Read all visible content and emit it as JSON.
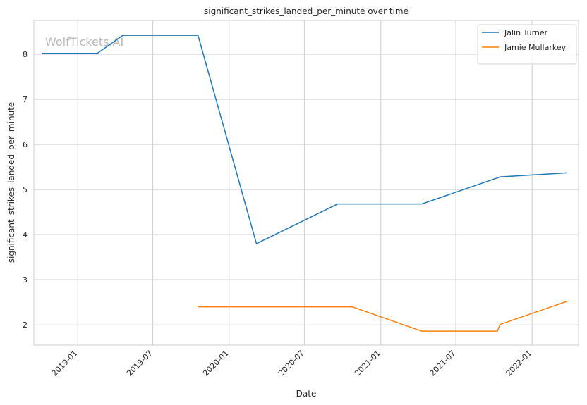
{
  "chart_data": {
    "type": "line",
    "title": "significant_strikes_landed_per_minute over time",
    "xlabel": "Date",
    "ylabel": "significant_strikes_landed_per_minute",
    "watermark": "WolfTickets.AI",
    "xlim": [
      "2018-09-17",
      "2022-04-23"
    ],
    "ylim": [
      1.55,
      8.75
    ],
    "x_ticks": [
      "2019-01-01",
      "2019-07-01",
      "2020-01-01",
      "2020-07-01",
      "2021-01-01",
      "2021-07-01",
      "2022-01-01"
    ],
    "x_tick_labels": [
      "2019-01",
      "2019-07",
      "2020-01",
      "2020-07",
      "2021-01",
      "2021-07",
      "2022-01"
    ],
    "y_ticks": [
      2,
      3,
      4,
      5,
      6,
      7,
      8
    ],
    "y_tick_labels": [
      "2",
      "3",
      "4",
      "5",
      "6",
      "7",
      "8"
    ],
    "grid": true,
    "legend_position": "top-right",
    "series": [
      {
        "name": "Jalin Turner",
        "color": "#1f77b4",
        "points": [
          [
            "2018-10-06",
            8.02
          ],
          [
            "2019-02-17",
            8.02
          ],
          [
            "2019-04-20",
            8.42
          ],
          [
            "2019-10-18",
            8.42
          ],
          [
            "2020-03-07",
            3.8
          ],
          [
            "2020-09-19",
            4.68
          ],
          [
            "2021-04-10",
            4.68
          ],
          [
            "2021-10-16",
            5.28
          ],
          [
            "2022-03-26",
            5.37
          ]
        ]
      },
      {
        "name": "Jamie Mullarkey",
        "color": "#ff7f0e",
        "points": [
          [
            "2019-10-18",
            2.4
          ],
          [
            "2020-10-24",
            2.4
          ],
          [
            "2021-04-10",
            1.86
          ],
          [
            "2021-10-09",
            1.86
          ],
          [
            "2021-10-16",
            2.01
          ],
          [
            "2022-03-26",
            2.52
          ]
        ]
      }
    ]
  }
}
